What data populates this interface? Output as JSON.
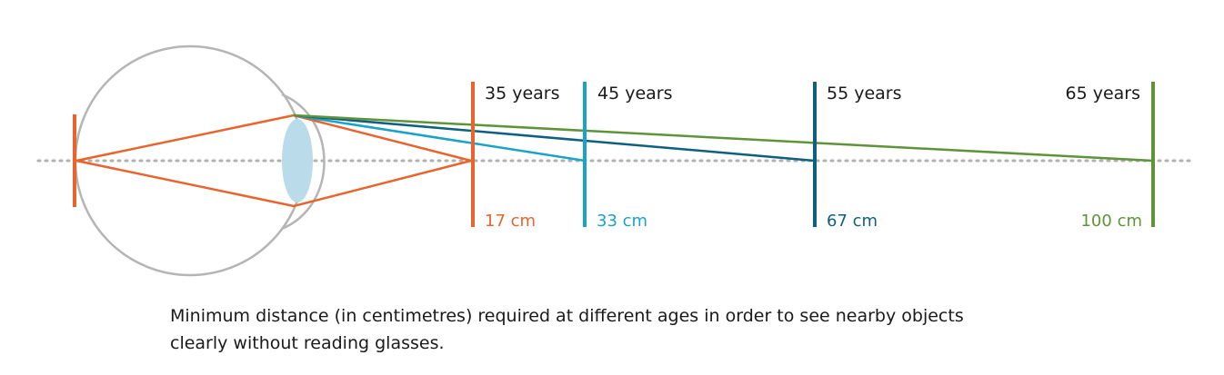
{
  "markers": [
    {
      "age": "35 years",
      "distance": "17 cm",
      "color": "#e8642c"
    },
    {
      "age": "45 years",
      "distance": "33 cm",
      "color": "#1aa3c8"
    },
    {
      "age": "55 years",
      "distance": "67 cm",
      "color": "#0f5f80"
    },
    {
      "age": "65 years",
      "distance": "100 cm",
      "color": "#5e9437"
    }
  ],
  "caption": {
    "line1": "Minimum distance (in centimetres) required at different ages in order to see nearby objects",
    "line2": "clearly without reading glasses."
  },
  "colors": {
    "eye_outline": "#b5b5b5",
    "lens": "#b9dbea",
    "axis": "#b0b0b0",
    "retina": "#e8642c"
  }
}
